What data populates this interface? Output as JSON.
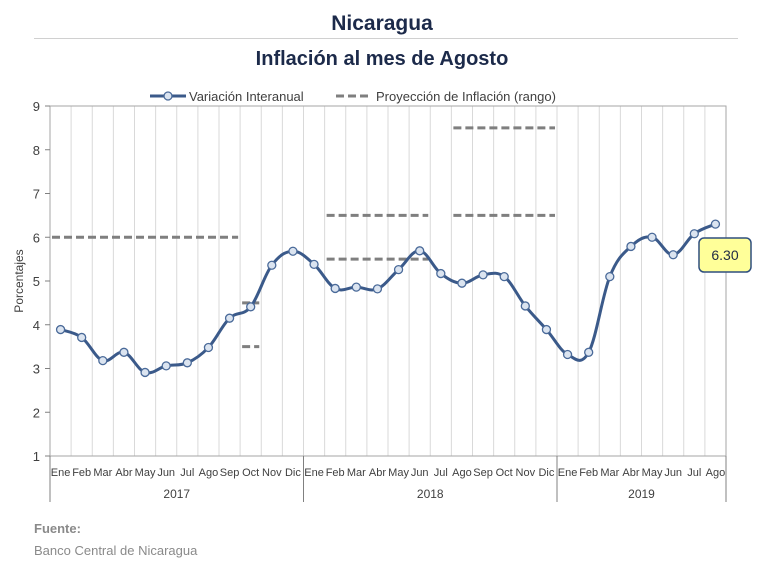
{
  "header": {
    "title": "Nicaragua",
    "subtitle": "Inflación al mes de Agosto"
  },
  "footer": {
    "source_label": "Fuente:",
    "source_text": "Banco Central de Nicaragua"
  },
  "chart_data": {
    "type": "line",
    "ylabel": "Porcentajes",
    "ylim": [
      1,
      9
    ],
    "yticks": [
      1,
      2,
      3,
      4,
      5,
      6,
      7,
      8,
      9
    ],
    "grid": "vertical",
    "legend_position": "top",
    "categories": [
      "Ene",
      "Feb",
      "Mar",
      "Abr",
      "May",
      "Jun",
      "Jul",
      "Ago",
      "Sep",
      "Oct",
      "Nov",
      "Dic",
      "Ene",
      "Feb",
      "Mar",
      "Abr",
      "May",
      "Jun",
      "Jul",
      "Ago",
      "Sep",
      "Oct",
      "Nov",
      "Dic",
      "Ene",
      "Feb",
      "Mar",
      "Abr",
      "May",
      "Jun",
      "Jul",
      "Ago"
    ],
    "year_groups": [
      {
        "label": "2017",
        "count": 12
      },
      {
        "label": "2018",
        "count": 12
      },
      {
        "label": "2019",
        "count": 8
      }
    ],
    "series": [
      {
        "name": "Variación Interanual",
        "color": "#3b5a8a",
        "values": [
          3.89,
          3.71,
          3.18,
          3.37,
          2.91,
          3.06,
          3.13,
          3.48,
          4.15,
          4.41,
          5.36,
          5.68,
          5.38,
          4.83,
          4.86,
          4.82,
          5.26,
          5.69,
          5.17,
          4.95,
          5.14,
          5.1,
          4.43,
          3.89,
          3.32,
          3.37,
          5.1,
          5.79,
          6.0,
          5.6,
          6.08,
          6.3
        ]
      }
    ],
    "projections": {
      "name": "Proyección de Inflación (rango)",
      "color": "#7f7f7f",
      "ranges": [
        {
          "from": "Ene 2017",
          "to": "Sep 2017",
          "value": 6.0
        },
        {
          "from": "Oct 2017",
          "to": "Oct 2017",
          "value": 4.5
        },
        {
          "from": "Oct 2017",
          "to": "Oct 2017",
          "value": 3.5
        },
        {
          "from": "Feb 2018",
          "to": "Jun 2018",
          "value": 6.5
        },
        {
          "from": "Feb 2018",
          "to": "Jun 2018",
          "value": 5.5
        },
        {
          "from": "Ago 2018",
          "to": "Dic 2018",
          "value": 8.5
        },
        {
          "from": "Ago 2018",
          "to": "Dic 2018",
          "value": 6.5
        }
      ]
    },
    "callout": {
      "label": "6.30",
      "point": "Ago 2019",
      "fill": "#ffff99",
      "border": "#2f4f7f"
    }
  }
}
